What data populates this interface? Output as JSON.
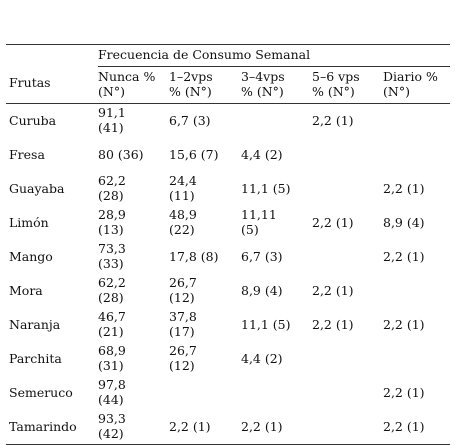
{
  "table": {
    "group_header": "Frecuencia de Consumo Semanal",
    "columns": [
      "Frutas",
      "Nunca %\n(N°)",
      "1–2vps\n% (N°)",
      "3–4vps\n% (N°)",
      "5–6 vps\n% (N°)",
      "Diario %\n(N°)"
    ],
    "rows": [
      [
        "Curuba",
        "91,1\n(41)",
        "6,7 (3)",
        "",
        "2,2 (1)",
        ""
      ],
      [
        "Fresa",
        "80 (36)",
        "15,6 (7)",
        "4,4 (2)",
        "",
        ""
      ],
      [
        "Guayaba",
        "62,2\n(28)",
        "24,4\n(11)",
        "11,1 (5)",
        "",
        "2,2 (1)"
      ],
      [
        "Limón",
        "28,9\n(13)",
        "48,9\n(22)",
        "11,11\n(5)",
        "2,2 (1)",
        "8,9 (4)"
      ],
      [
        "Mango",
        "73,3\n(33)",
        "17,8 (8)",
        "6,7 (3)",
        "",
        "2,2 (1)"
      ],
      [
        "Mora",
        "62,2\n(28)",
        "26,7\n(12)",
        "8,9 (4)",
        "2,2 (1)",
        ""
      ],
      [
        "Naranja",
        "46,7\n(21)",
        "37,8\n(17)",
        "11,1 (5)",
        "2,2 (1)",
        "2,2 (1)"
      ],
      [
        "Parchita",
        "68,9\n(31)",
        "26,7\n(12)",
        "4,4 (2)",
        "",
        ""
      ],
      [
        "Semeruco",
        "97,8\n(44)",
        "",
        "",
        "",
        "2,2 (1)"
      ],
      [
        "Tamarindo",
        "93,3\n(42)",
        "2,2 (1)",
        "2,2 (1)",
        "",
        "2,2 (1)"
      ]
    ]
  }
}
